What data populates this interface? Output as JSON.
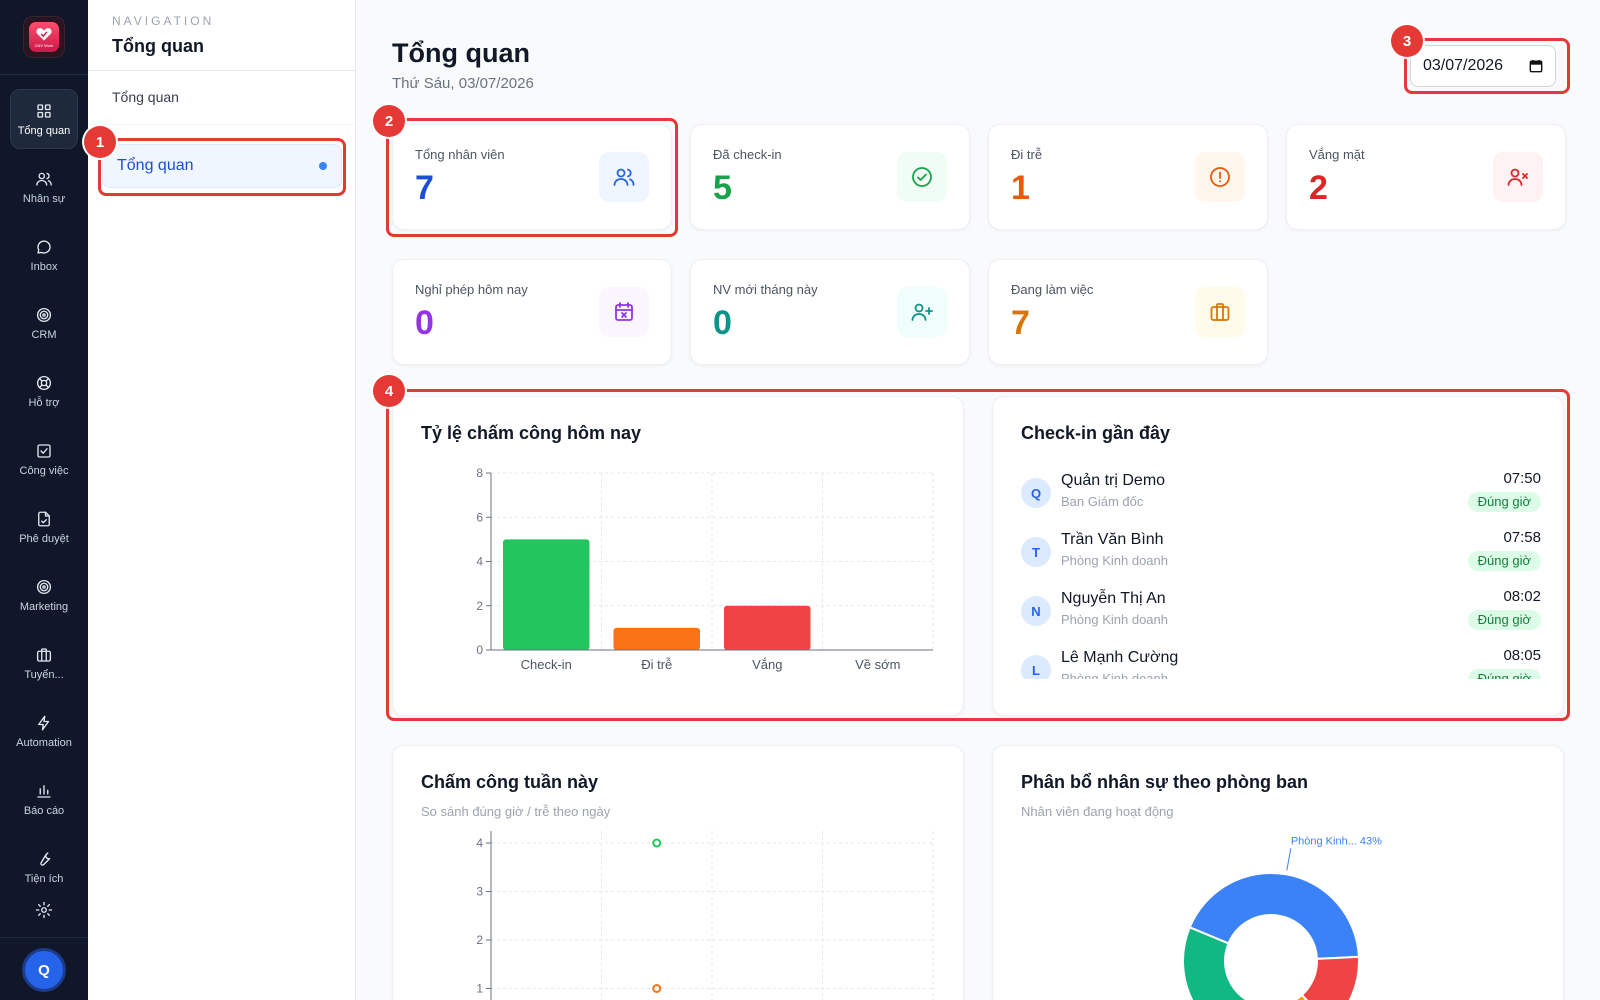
{
  "rail": {
    "logo_text": "CNV Work",
    "items": [
      {
        "label": "Tổng quan",
        "icon": "grid-icon"
      },
      {
        "label": "Nhân sự",
        "icon": "users-icon"
      },
      {
        "label": "Inbox",
        "icon": "chat-icon"
      },
      {
        "label": "CRM",
        "icon": "target-icon"
      },
      {
        "label": "Hỗ trợ",
        "icon": "lifebuoy-icon"
      },
      {
        "label": "Công việc",
        "icon": "checkbox-icon"
      },
      {
        "label": "Phê duyệt",
        "icon": "file-check-icon"
      },
      {
        "label": "Marketing",
        "icon": "target-icon"
      },
      {
        "label": "Tuyển...",
        "icon": "briefcase-icon"
      },
      {
        "label": "Automation",
        "icon": "bolt-icon"
      },
      {
        "label": "Báo cáo",
        "icon": "bar-chart-icon"
      },
      {
        "label": "Tiện ích",
        "icon": "wrench-icon"
      }
    ],
    "avatar": "Q"
  },
  "subnav": {
    "caption": "NAVIGATION",
    "title": "Tổng quan",
    "group": "Tổng quan",
    "active_item": "Tổng quan"
  },
  "header": {
    "title": "Tổng quan",
    "subtitle": "Thứ Sáu, 03/07/2026",
    "date_value": "03/07/2026"
  },
  "stats": [
    {
      "label": "Tổng nhân viên",
      "value": "7",
      "color": "#1d4ed8",
      "icon": "users-icon",
      "icon_bg": "#eff6ff",
      "icon_color": "#2563eb"
    },
    {
      "label": "Đã check-in",
      "value": "5",
      "color": "#16a34a",
      "icon": "check-circle-icon",
      "icon_bg": "#f0fdf4",
      "icon_color": "#16a34a"
    },
    {
      "label": "Đi trễ",
      "value": "1",
      "color": "#ea580c",
      "icon": "alert-circle-icon",
      "icon_bg": "#fff7ed",
      "icon_color": "#ea580c"
    },
    {
      "label": "Vắng mặt",
      "value": "2",
      "color": "#dc2626",
      "icon": "user-x-icon",
      "icon_bg": "#fef2f2",
      "icon_color": "#dc2626"
    },
    {
      "label": "Nghỉ phép hôm nay",
      "value": "0",
      "color": "#9333ea",
      "icon": "calendar-x-icon",
      "icon_bg": "#faf5ff",
      "icon_color": "#9333ea"
    },
    {
      "label": "NV mới tháng này",
      "value": "0",
      "color": "#0d9488",
      "icon": "user-plus-icon",
      "icon_bg": "#f0fdfa",
      "icon_color": "#0d9488"
    },
    {
      "label": "Đang làm việc",
      "value": "7",
      "color": "#d97706",
      "icon": "briefcase-icon",
      "icon_bg": "#fffbeb",
      "icon_color": "#d97706"
    }
  ],
  "attendance_panel": {
    "title": "Tỷ lệ chấm công hôm nay"
  },
  "checkin_panel": {
    "title": "Check-in gần đây",
    "rows": [
      {
        "initial": "Q",
        "name": "Quản trị Demo",
        "dept": "Ban Giám đốc",
        "time": "07:50",
        "status": "Đúng giờ"
      },
      {
        "initial": "T",
        "name": "Trần Văn Bình",
        "dept": "Phòng Kinh doanh",
        "time": "07:58",
        "status": "Đúng giờ"
      },
      {
        "initial": "N",
        "name": "Nguyễn Thị An",
        "dept": "Phòng Kinh doanh",
        "time": "08:02",
        "status": "Đúng giờ"
      },
      {
        "initial": "L",
        "name": "Lê Mạnh Cường",
        "dept": "Phòng Kinh doanh",
        "time": "08:05",
        "status": "Đúng giờ"
      }
    ]
  },
  "week_panel": {
    "title": "Chấm công tuần này",
    "subtitle": "So sánh đúng giờ / trễ theo ngày"
  },
  "dept_panel": {
    "title": "Phân bổ nhân sự theo phòng ban",
    "subtitle": "Nhân viên đang hoạt động"
  },
  "annotations": [
    "1",
    "2",
    "3",
    "4"
  ],
  "chart_data": [
    {
      "type": "bar",
      "categories": [
        "Check-in",
        "Đi trễ",
        "Vắng",
        "Về sớm"
      ],
      "values": [
        5,
        1,
        2,
        0
      ],
      "colors": [
        "#22c55e",
        "#f97316",
        "#ef4444",
        "#a855f7"
      ],
      "ylim": [
        0,
        8
      ],
      "yticks": [
        0,
        2,
        4,
        6,
        8
      ],
      "grid": true
    },
    {
      "type": "line",
      "series": [
        {
          "color": "#22c55e",
          "points": [
            {
              "x_index": 2,
              "y": 4
            }
          ]
        },
        {
          "color": "#f97316",
          "points": [
            {
              "x_index": 2,
              "y": 1
            }
          ]
        }
      ],
      "yticks": [
        1,
        2,
        3,
        4
      ],
      "grid": true
    },
    {
      "type": "pie",
      "donut": true,
      "slices": [
        {
          "label": "Phòng Kinh... 43%",
          "value": 43,
          "color": "#3b82f6"
        },
        {
          "label": "",
          "value": 14,
          "color": "#ef4444"
        },
        {
          "label": "",
          "value": 14,
          "color": "#f59e0b"
        },
        {
          "label": "",
          "value": 29,
          "color": "#10b981"
        }
      ]
    }
  ]
}
